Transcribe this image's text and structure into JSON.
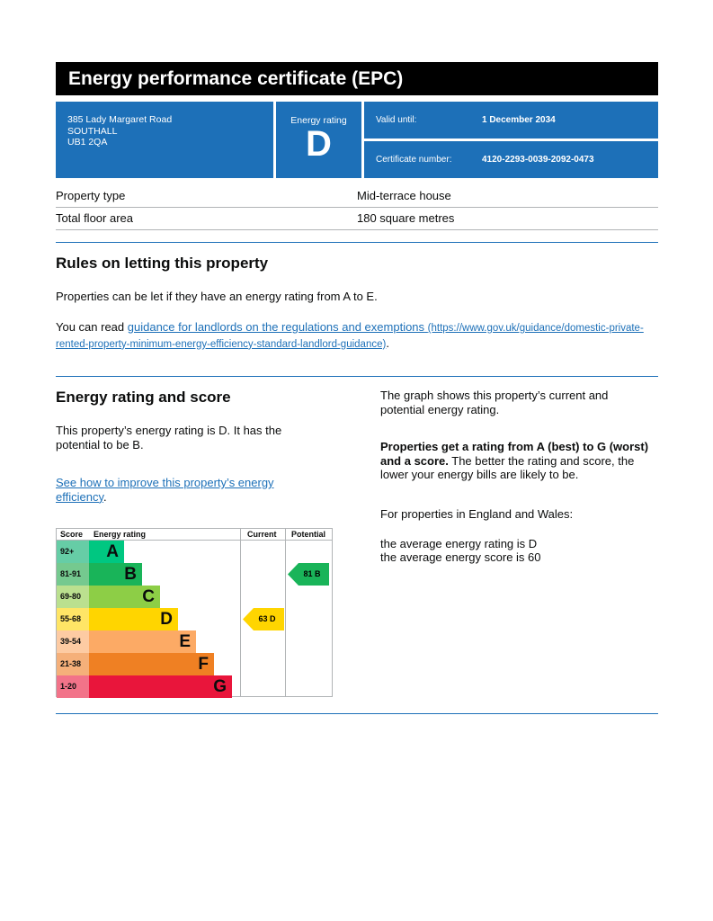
{
  "title": "Energy performance certificate (EPC)",
  "address": [
    "385 Lady Margaret Road",
    "SOUTHALL",
    "UB1 2QA"
  ],
  "energy_rating_label": "Energy rating",
  "energy_rating": "D",
  "valid_until_label": "Valid until:",
  "valid_until": "1 December 2034",
  "certificate_label": "Certificate number:",
  "certificate_number": "4120-2293-0039-2092-0473",
  "property": [
    {
      "label": "Property type",
      "value": "Mid-terrace house"
    },
    {
      "label": "Total floor area",
      "value": "180 square metres"
    }
  ],
  "rules": {
    "heading": "Rules on letting this property",
    "p1": "Properties can be let if they have an energy rating from A to E.",
    "p2_prefix": "You can read ",
    "link": "guidance for landlords on the regulations and exemptions",
    "link_url_text": "(https://www.gov.uk/guidance/domestic-private-rented-property-minimum-energy-efficiency-standard-landlord-guidance)",
    "p2_suffix": "."
  },
  "score": {
    "heading": "Energy rating and score",
    "p1": "This property’s energy rating is D. It has the potential to be B.",
    "link": "See how to improve this property’s energy efficiency",
    "link_suffix": ".",
    "right_p1": "The graph shows this property’s current and potential energy rating.",
    "right_bold": "Properties get a rating from A (best) to G (worst) and a score.",
    "right_p2": " The better the rating and score, the lower your energy bills are likely to be.",
    "right_p3": "For properties in England and Wales:",
    "right_p4": "the average energy rating is D",
    "right_p5": "the average energy score is 60"
  },
  "chart_data": {
    "type": "table",
    "headers": [
      "Score",
      "Energy rating",
      "Current",
      "Potential"
    ],
    "bands": [
      {
        "letter": "A",
        "range": "92+",
        "color": "#00c781",
        "light": "#66cda6"
      },
      {
        "letter": "B",
        "range": "81-91",
        "color": "#19b459",
        "light": "#75c98f"
      },
      {
        "letter": "C",
        "range": "69-80",
        "color": "#8dce46",
        "light": "#bbe08f"
      },
      {
        "letter": "D",
        "range": "55-68",
        "color": "#ffd500",
        "light": "#ffe566"
      },
      {
        "letter": "E",
        "range": "39-54",
        "color": "#fcaa65",
        "light": "#fdcba3"
      },
      {
        "letter": "F",
        "range": "21-38",
        "color": "#ef8023",
        "light": "#f5b07a"
      },
      {
        "letter": "G",
        "range": "1-20",
        "color": "#e9153b",
        "light": "#f27389"
      }
    ],
    "current": {
      "score": 63,
      "letter": "D",
      "label": "63  D"
    },
    "potential": {
      "score": 81,
      "letter": "B",
      "label": "81  B"
    }
  }
}
